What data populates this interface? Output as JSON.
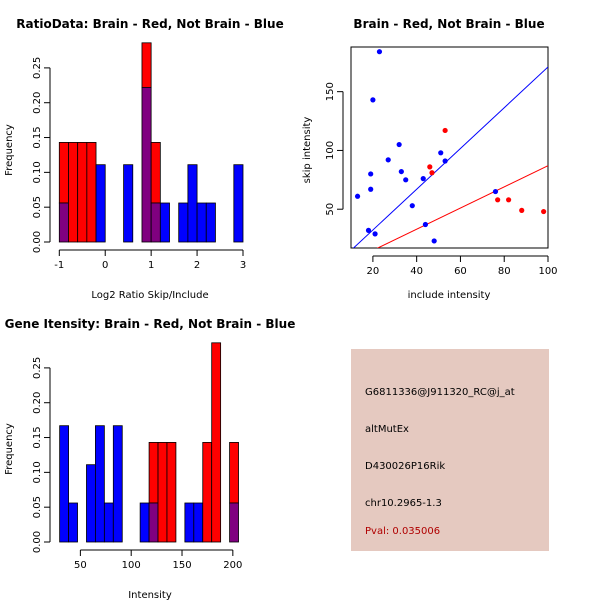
{
  "colors": {
    "red": "#ff0000",
    "blue": "#0000ff",
    "overlap": "#800080",
    "info_bg": "#e5c9c0",
    "pval_text": "#b00000"
  },
  "chart_data": [
    {
      "type": "histogram",
      "title": "RatioData: Brain - Red, Not Brain - Blue",
      "xlabel": "Log2 Ratio Skip/Include",
      "ylabel": "Frequency",
      "xlim": [
        -1.05,
        3.0
      ],
      "ylim": [
        0,
        0.28
      ],
      "x_ticks": [
        -1,
        0,
        1,
        2,
        3
      ],
      "y_ticks": [
        0.0,
        0.05,
        0.1,
        0.15,
        0.2,
        0.25
      ],
      "y_tick_labels": [
        "0.00",
        "0.05",
        "0.10",
        "0.15",
        "0.20",
        "0.25"
      ],
      "bin_width": 0.2,
      "bin_starts": [
        -1.0,
        -0.8,
        -0.6,
        -0.4,
        -0.2,
        0.0,
        0.2,
        0.4,
        0.6,
        0.8,
        1.0,
        1.2,
        1.4,
        1.6,
        1.8,
        2.0,
        2.2,
        2.4,
        2.6,
        2.8
      ],
      "series": [
        {
          "name": "Brain",
          "color": "red",
          "values": [
            0.143,
            0.143,
            0.143,
            0.143,
            0,
            0,
            0,
            0,
            0,
            0.286,
            0.143,
            0,
            0,
            0,
            0,
            0,
            0,
            0,
            0,
            0
          ]
        },
        {
          "name": "Not Brain",
          "color": "blue",
          "values": [
            0.056,
            0,
            0,
            0,
            0.111,
            0,
            0,
            0.111,
            0,
            0.222,
            0.056,
            0.056,
            0,
            0.056,
            0.111,
            0.056,
            0.056,
            0,
            0,
            0.111
          ]
        }
      ]
    },
    {
      "type": "scatter",
      "title": "Brain - Red, Not Brain - Blue",
      "xlabel": "include intensity",
      "ylabel": "skip intensity",
      "xlim": [
        10,
        100
      ],
      "ylim": [
        17,
        188
      ],
      "x_ticks": [
        20,
        40,
        60,
        80,
        100
      ],
      "y_ticks": [
        50,
        100,
        150
      ],
      "series": [
        {
          "name": "Not Brain",
          "color": "blue",
          "points": [
            [
              13,
              61
            ],
            [
              18,
              32
            ],
            [
              19,
              67
            ],
            [
              19,
              80
            ],
            [
              20,
              143
            ],
            [
              21,
              29
            ],
            [
              23,
              184
            ],
            [
              27,
              92
            ],
            [
              32,
              105
            ],
            [
              33,
              82
            ],
            [
              35,
              75
            ],
            [
              38,
              53
            ],
            [
              43,
              76
            ],
            [
              44,
              37
            ],
            [
              48,
              23
            ],
            [
              51,
              98
            ],
            [
              53,
              91
            ],
            [
              76,
              65
            ]
          ]
        },
        {
          "name": "Brain",
          "color": "red",
          "points": [
            [
              46,
              86
            ],
            [
              47,
              81
            ],
            [
              53,
              117
            ],
            [
              77,
              58
            ],
            [
              82,
              58
            ],
            [
              88,
              49
            ],
            [
              98,
              48
            ]
          ]
        }
      ],
      "fit_lines": [
        {
          "name": "Not Brain fit",
          "color": "blue",
          "from": [
            10,
            15
          ],
          "to": [
            100,
            171
          ]
        },
        {
          "name": "Brain fit",
          "color": "red",
          "from": [
            10,
            6
          ],
          "to": [
            100,
            87
          ]
        }
      ]
    },
    {
      "type": "histogram",
      "title": "Gene Itensity: Brain - Red, Not Brain - Blue",
      "xlabel": "Intensity",
      "ylabel": "Frequency",
      "xlim": [
        27,
        210
      ],
      "ylim": [
        0,
        0.28
      ],
      "x_ticks": [
        50,
        100,
        150,
        200
      ],
      "y_ticks": [
        0.0,
        0.05,
        0.1,
        0.15,
        0.2,
        0.25
      ],
      "y_tick_labels": [
        "0.00",
        "0.05",
        "0.10",
        "0.15",
        "0.20",
        "0.25"
      ],
      "bin_width": 8.8,
      "bin_starts": [
        29.6,
        38.4,
        47.2,
        56.0,
        64.8,
        73.6,
        82.4,
        91.2,
        100.0,
        108.8,
        117.6,
        126.4,
        135.2,
        144.0,
        152.8,
        161.6,
        170.4,
        179.2,
        188.0,
        196.8
      ],
      "series": [
        {
          "name": "Brain",
          "color": "red",
          "values": [
            0,
            0,
            0,
            0,
            0,
            0,
            0,
            0,
            0,
            0,
            0.143,
            0.143,
            0.143,
            0,
            0,
            0,
            0.143,
            0.286,
            0,
            0.143
          ]
        },
        {
          "name": "Not Brain",
          "color": "blue",
          "values": [
            0.167,
            0.056,
            0,
            0.111,
            0.167,
            0.056,
            0.167,
            0,
            0,
            0.056,
            0.056,
            0,
            0,
            0,
            0.056,
            0.056,
            0,
            0,
            0,
            0.056
          ]
        }
      ]
    }
  ],
  "info": {
    "probe_id": "G6811336@J911320_RC@j_at",
    "event_type": "altMutEx",
    "gene": "D430026P16Rik",
    "location": "chr10.2965-1.3",
    "pval": "Pval: 0.035006"
  }
}
